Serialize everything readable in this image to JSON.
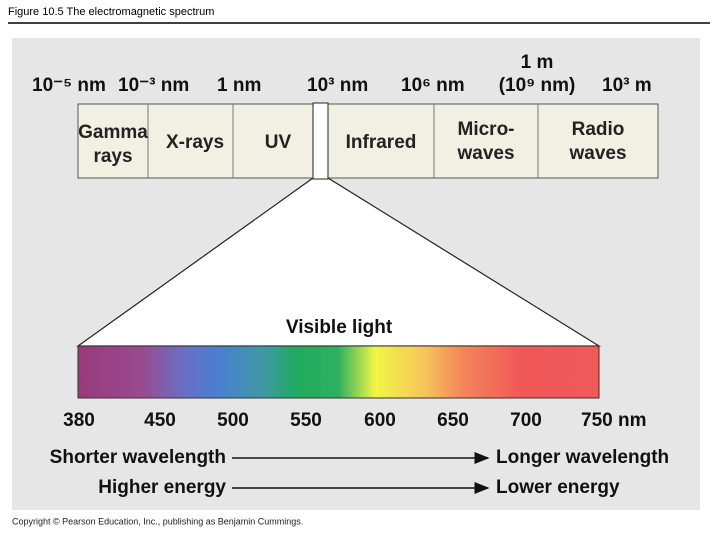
{
  "header": {
    "title": "Figure 10.5  The electromagnetic spectrum"
  },
  "scale": [
    "10⁻⁵ nm",
    "10⁻³ nm",
    "1 nm",
    "10³ nm",
    "10⁶ nm",
    "10³ m"
  ],
  "scale_top": {
    "line1": "1 m",
    "line2": "(10⁹ nm)"
  },
  "bands": [
    {
      "lines": [
        "Gamma",
        "rays"
      ]
    },
    {
      "lines": [
        "X-rays"
      ]
    },
    {
      "lines": [
        "UV"
      ]
    },
    {
      "lines": [
        "Infrared"
      ]
    },
    {
      "lines": [
        "Micro-",
        "waves"
      ]
    },
    {
      "lines": [
        "Radio",
        "waves"
      ]
    }
  ],
  "visible": {
    "label": "Visible light",
    "ticks": [
      "380",
      "450",
      "500",
      "550",
      "600",
      "650",
      "700",
      "750 nm"
    ]
  },
  "arrows": [
    {
      "left": "Shorter wavelength",
      "right": "Longer wavelength"
    },
    {
      "left": "Higher energy",
      "right": "Lower energy"
    }
  ],
  "footer": {
    "copyright": "Copyright © Pearson Education, Inc., publishing as Benjamin Cummings."
  }
}
